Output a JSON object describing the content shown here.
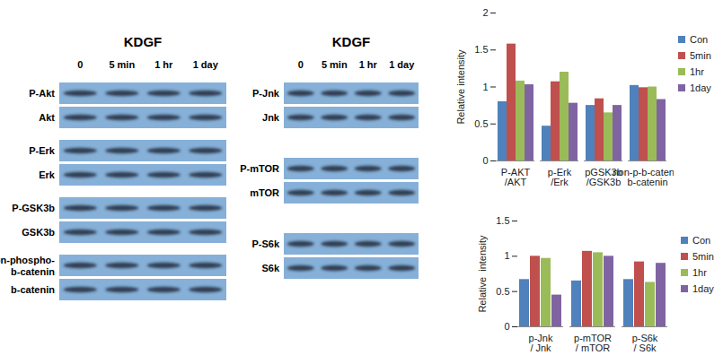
{
  "chart_data": [
    {
      "type": "bar",
      "categories": [
        "P-AKT\n/AKT",
        "p-Erk\n/Erk",
        "pGSK3b\n/GSK3b",
        "non-p-b-catenin\nb-catenin"
      ],
      "series": [
        {
          "name": "Con",
          "color": "#4f81bd",
          "values": [
            0.8,
            0.47,
            0.75,
            1.02
          ]
        },
        {
          "name": "5min",
          "color": "#c0504d",
          "values": [
            1.58,
            1.07,
            0.84,
            0.99
          ]
        },
        {
          "name": "1hr",
          "color": "#9bbb59",
          "values": [
            1.08,
            1.2,
            0.65,
            1.0
          ]
        },
        {
          "name": "1day",
          "color": "#8064a2",
          "values": [
            1.03,
            0.78,
            0.75,
            0.83
          ]
        }
      ],
      "y_label": "Relative intensity",
      "ylim": [
        0,
        2
      ],
      "yticks": [
        0,
        0.5,
        1,
        1.5,
        2
      ],
      "grid": false,
      "legend": "right"
    },
    {
      "type": "bar",
      "categories": [
        "p-Jnk\n/ Jnk",
        "p-mTOR\n/ mTOR",
        "p-S6k\n/ S6k"
      ],
      "series": [
        {
          "name": "Con",
          "color": "#4f81bd",
          "values": [
            0.67,
            0.65,
            0.67
          ]
        },
        {
          "name": "5min",
          "color": "#c0504d",
          "values": [
            1.0,
            1.07,
            0.92
          ]
        },
        {
          "name": "1hr",
          "color": "#9bbb59",
          "values": [
            0.97,
            1.05,
            0.63
          ]
        },
        {
          "name": "1day",
          "color": "#8064a2",
          "values": [
            0.45,
            1.0,
            0.9
          ]
        }
      ],
      "y_label": "Relative  intensity",
      "ylim": [
        0,
        1.5
      ],
      "yticks": [
        0,
        0.5,
        1,
        1.5
      ],
      "grid": false,
      "legend": "right"
    }
  ],
  "blots": [
    {
      "title": "KDGF",
      "columns": [
        "0",
        "5 min",
        "1 hr",
        "1 day"
      ],
      "rows": [
        "P-Akt",
        "Akt",
        "P-Erk",
        "Erk",
        "P-GSK3b",
        "GSK3b",
        "Non-phospho-\nb-catenin",
        "b-catenin"
      ]
    },
    {
      "title": "KDGF",
      "columns": [
        "0",
        "5 min",
        "1 hr",
        "1 day"
      ],
      "rows": [
        "P-Jnk",
        "Jnk",
        "P-mTOR",
        "mTOR",
        "P-S6k",
        "S6k"
      ]
    }
  ]
}
